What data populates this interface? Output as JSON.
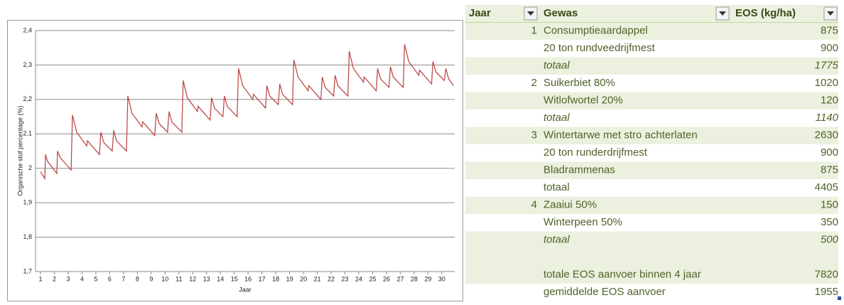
{
  "chart_data": {
    "type": "line",
    "xlabel": "Jaar",
    "ylabel": "Organische stof percentage (%)",
    "xlim": [
      0.64,
      30.93
    ],
    "xticks": [
      1,
      2,
      3,
      4,
      5,
      6,
      7,
      8,
      9,
      10,
      11,
      12,
      13,
      14,
      15,
      16,
      17,
      18,
      19,
      20,
      21,
      22,
      23,
      24,
      25,
      26,
      27,
      28,
      29,
      30
    ],
    "ylim": [
      1.7,
      2.4
    ],
    "yticks": [
      {
        "value": 1.7,
        "label": "1,7"
      },
      {
        "value": 1.8,
        "label": "1,8"
      },
      {
        "value": 1.9,
        "label": "1,9"
      },
      2,
      {
        "value": 2.1,
        "label": "2,1"
      },
      {
        "value": 2.2,
        "label": "2,2"
      },
      {
        "value": 2.3,
        "label": "2,3"
      },
      {
        "value": 2.4,
        "label": "2,4"
      }
    ],
    "grid": true,
    "series": [
      {
        "name": null,
        "color": "#be4b48",
        "x": [
          1,
          1.31,
          1.36,
          1.51,
          2.18,
          2.23,
          2.44,
          3.21,
          3.31,
          3.61,
          4.34,
          4.39,
          5.26,
          5.36,
          5.57,
          6.18,
          6.29,
          6.49,
          7.21,
          7.31,
          7.61,
          8.34,
          8.39,
          9.26,
          9.36,
          9.57,
          10.18,
          10.29,
          10.49,
          11.21,
          11.31,
          11.61,
          12.34,
          12.39,
          13.26,
          13.36,
          13.57,
          14.18,
          14.29,
          14.49,
          15.21,
          15.31,
          15.61,
          16.34,
          16.39,
          17.26,
          17.36,
          17.57,
          18.18,
          18.29,
          18.49,
          19.21,
          19.31,
          19.61,
          20.34,
          20.39,
          21.26,
          21.36,
          21.57,
          22.18,
          22.29,
          22.49,
          23.21,
          23.31,
          23.61,
          24.34,
          24.39,
          25.26,
          25.36,
          25.57,
          26.18,
          26.29,
          26.49,
          27.21,
          27.31,
          27.61,
          28.34,
          28.39,
          29.26,
          29.36,
          29.57,
          30.18,
          30.29,
          30.49,
          30.85
        ],
        "values": [
          1.99,
          1.97,
          2.04,
          2.02,
          1.985,
          2.05,
          2.03,
          1.995,
          2.155,
          2.105,
          2.065,
          2.08,
          2.04,
          2.105,
          2.075,
          2.05,
          2.11,
          2.08,
          2.05,
          2.21,
          2.16,
          2.12,
          2.135,
          2.095,
          2.16,
          2.13,
          2.105,
          2.165,
          2.135,
          2.105,
          2.255,
          2.205,
          2.165,
          2.18,
          2.14,
          2.205,
          2.175,
          2.15,
          2.21,
          2.18,
          2.15,
          2.29,
          2.24,
          2.2,
          2.215,
          2.175,
          2.24,
          2.21,
          2.185,
          2.245,
          2.215,
          2.185,
          2.315,
          2.265,
          2.225,
          2.24,
          2.2,
          2.265,
          2.235,
          2.21,
          2.27,
          2.24,
          2.21,
          2.34,
          2.29,
          2.25,
          2.265,
          2.225,
          2.29,
          2.26,
          2.235,
          2.295,
          2.265,
          2.235,
          2.36,
          2.31,
          2.27,
          2.285,
          2.245,
          2.31,
          2.28,
          2.255,
          2.29,
          2.26,
          2.24
        ]
      }
    ]
  },
  "table": {
    "header": [
      "Jaar",
      "Gewas",
      "EOS (kg/ha)"
    ],
    "rows": [
      {
        "jaar": 1,
        "gewas": "Consumptieaardappel",
        "eos": 875
      },
      {
        "gewas": "20 ton rundveedrijfmest",
        "eos": 900
      },
      {
        "gewas": "totaal",
        "eos": 1775,
        "style": "italic"
      },
      {
        "jaar": 2,
        "gewas": "Suikerbiet 80%",
        "eos": 1020
      },
      {
        "gewas": "Witlofwortel 20%",
        "eos": 120
      },
      {
        "gewas": "totaal",
        "eos": 1140,
        "style": "italic"
      },
      {
        "jaar": 3,
        "gewas": "Wintertarwe met stro achterlaten",
        "eos": 2630
      },
      {
        "gewas": "20 ton runderdrijfmest",
        "eos": 900
      },
      {
        "gewas": "Bladrammenas",
        "eos": 875
      },
      {
        "gewas": "totaal",
        "eos": 4405
      },
      {
        "jaar": 4,
        "gewas": "Zaaiui 50%",
        "eos": 150
      },
      {
        "gewas": "Winterpeen 50%",
        "eos": 350
      },
      {
        "gewas": "totaal",
        "eos": 500,
        "style": "italic"
      }
    ],
    "summary": [
      {
        "gewas": "totale EOS aanvoer binnen 4 jaar",
        "eos": 7820
      },
      {
        "gewas": "gemiddelde EOS aanvoer",
        "eos": 1955
      }
    ]
  }
}
